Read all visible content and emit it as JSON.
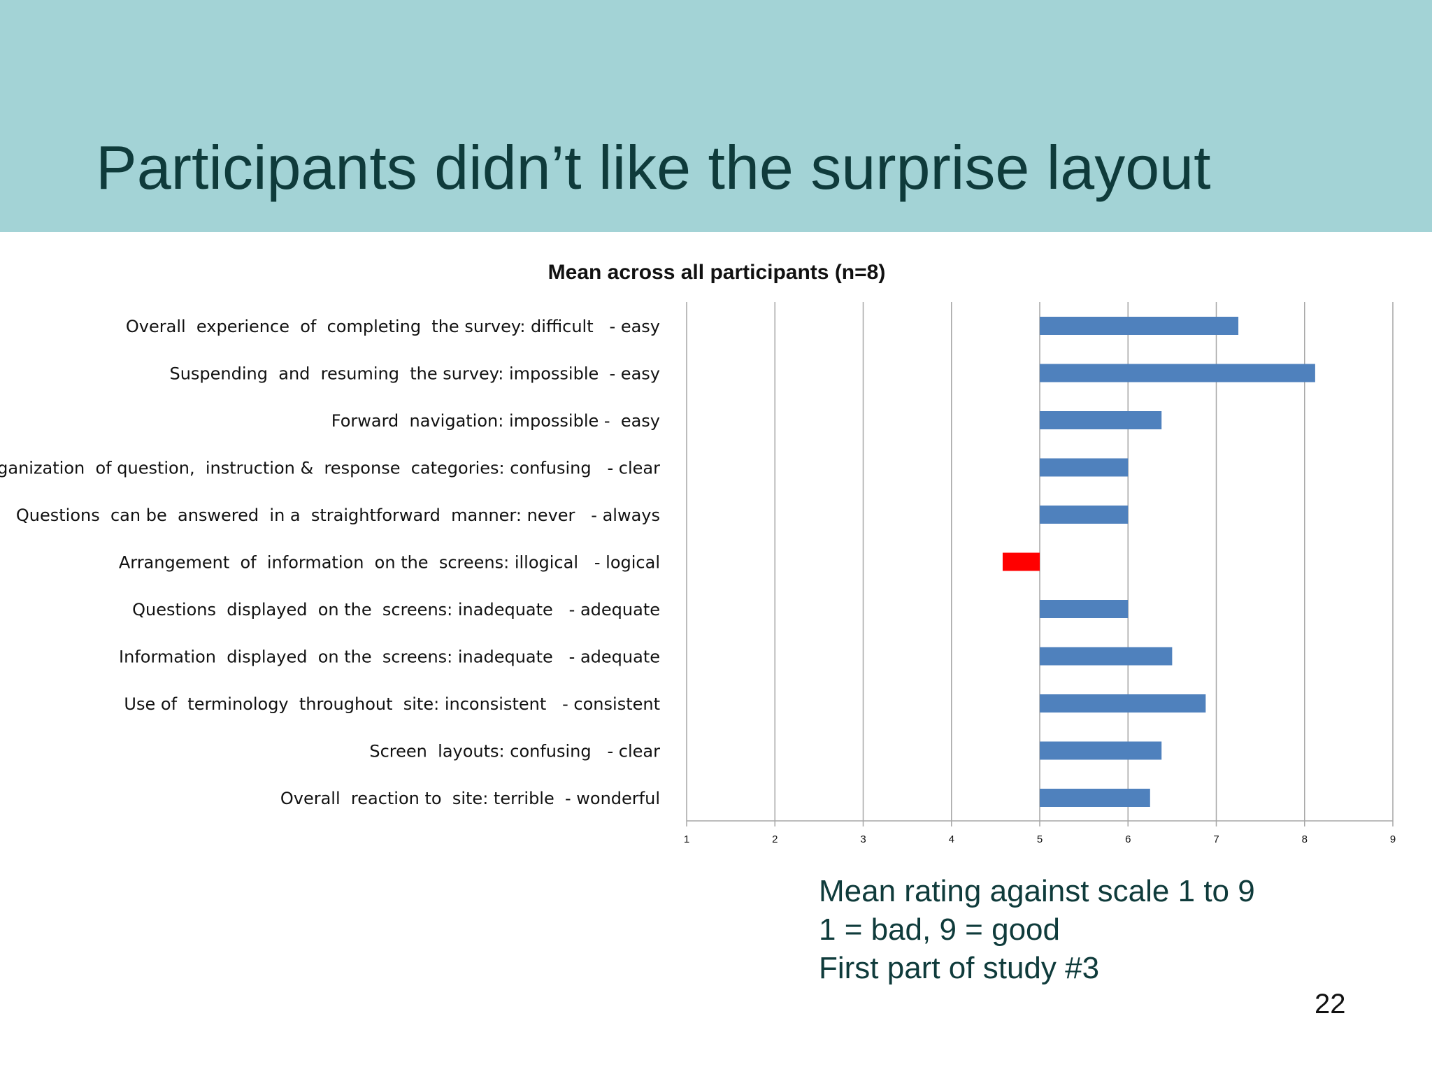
{
  "slide": {
    "title": "Participants didn’t like the surprise layout",
    "notes": [
      "Mean rating against scale 1 to 9",
      "1 = bad, 9 = good",
      "First part of study #3"
    ],
    "page_number": "22"
  },
  "colors": {
    "header_band": "#a3d3d6",
    "title_text": "#0f3b3b",
    "bar_default": "#4f81bd",
    "bar_highlight": "#ff0000",
    "gridline": "#a6a6a6"
  },
  "chart_data": {
    "type": "bar",
    "orientation": "horizontal",
    "title": "Mean across all participants (n=8)",
    "xlabel": "",
    "ylabel": "",
    "xlim": [
      1,
      9
    ],
    "xticks": [
      1,
      2,
      3,
      4,
      5,
      6,
      7,
      8,
      9
    ],
    "baseline": 5,
    "grid": true,
    "legend": "none",
    "categories": [
      "Overall  experience  of  completing  the survey: difficult   - easy",
      "Suspending  and  resuming  the survey: impossible  - easy",
      "Forward  navigation: impossible -  easy",
      "Organization  of question,  instruction &  response  categories: confusing   - clear",
      "Questions  can be  answered  in a  straightforward  manner: never   - always",
      "Arrangement  of  information  on the  screens: illogical   - logical",
      "Questions  displayed  on the  screens: inadequate   - adequate",
      "Information  displayed  on the  screens: inadequate   - adequate",
      "Use of  terminology  throughout  site: inconsistent   - consistent",
      "Screen  layouts: confusing   - clear",
      "Overall  reaction to  site: terrible  - wonderful"
    ],
    "values": [
      7.25,
      8.12,
      6.38,
      6.0,
      6.0,
      4.58,
      6.0,
      6.5,
      6.88,
      6.38,
      6.25
    ],
    "highlight_index": 5
  }
}
